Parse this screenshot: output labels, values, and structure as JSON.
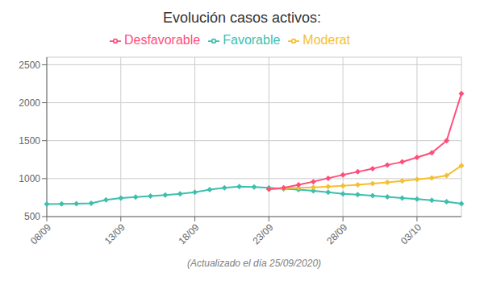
{
  "chart_data": {
    "type": "line",
    "title": "Evolución casos activos:",
    "xlabel": "(Actualizado el día 25/09/2020)",
    "categories": [
      "08/09",
      null,
      null,
      null,
      null,
      "13/09",
      null,
      null,
      null,
      null,
      "18/09",
      null,
      null,
      null,
      null,
      "23/09",
      null,
      null,
      null,
      null,
      "28/09",
      null,
      null,
      null,
      null,
      "03/10",
      null,
      null,
      null
    ],
    "series": [
      {
        "name": "Favorable",
        "color": "#3dbfad",
        "marker": "diamond",
        "values": [
          665,
          668,
          670,
          675,
          720,
          745,
          758,
          770,
          783,
          800,
          820,
          855,
          880,
          895,
          890,
          880,
          865,
          855,
          840,
          820,
          800,
          790,
          775,
          760,
          745,
          730,
          715,
          695,
          670
        ]
      },
      {
        "name": "Moderat",
        "color": "#f5bf2e",
        "marker": "diamond",
        "values": [
          null,
          null,
          null,
          null,
          null,
          null,
          null,
          null,
          null,
          null,
          null,
          null,
          null,
          null,
          null,
          860,
          870,
          878,
          885,
          895,
          905,
          920,
          935,
          950,
          970,
          990,
          1010,
          1040,
          1170
        ]
      },
      {
        "name": "Desfavorable",
        "color": "#ff4d7a",
        "marker": "diamond",
        "values": [
          null,
          null,
          null,
          null,
          null,
          null,
          null,
          null,
          null,
          null,
          null,
          null,
          null,
          null,
          null,
          860,
          880,
          920,
          960,
          1005,
          1050,
          1090,
          1130,
          1180,
          1220,
          1280,
          1340,
          1500,
          2120
        ]
      }
    ],
    "ylim": [
      500,
      2600
    ],
    "yticks": [
      500,
      1000,
      1500,
      2000,
      2500
    ],
    "grid": true,
    "legend": "top"
  }
}
